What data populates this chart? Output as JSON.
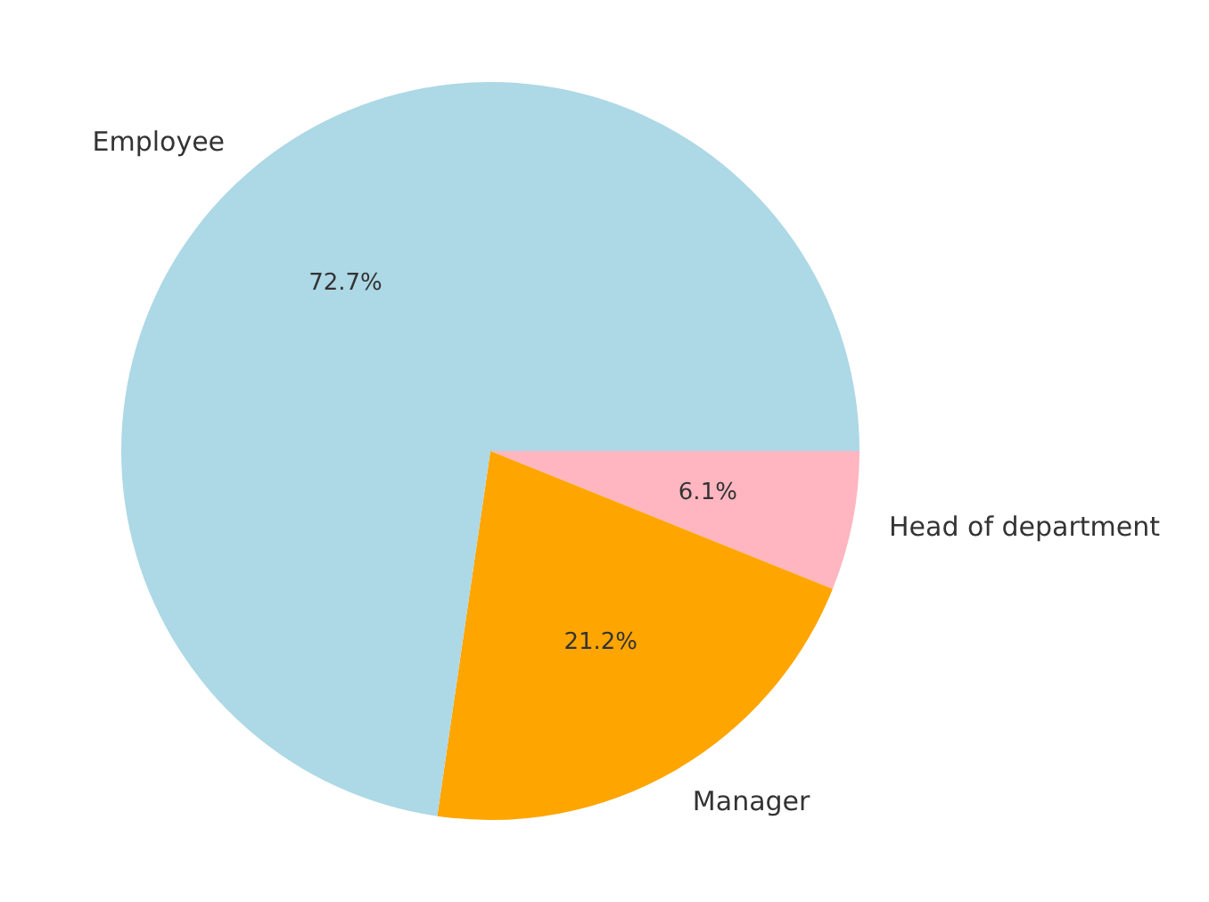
{
  "chart_data": {
    "type": "pie",
    "categories": [
      "Employee",
      "Manager",
      "Head of department"
    ],
    "values": [
      72.7,
      21.2,
      6.1
    ],
    "colors": [
      "#add8e6",
      "#ffa500",
      "#ffb6c1"
    ],
    "value_labels": [
      "72.7%",
      "21.2%",
      "6.1%"
    ],
    "legend": false
  }
}
